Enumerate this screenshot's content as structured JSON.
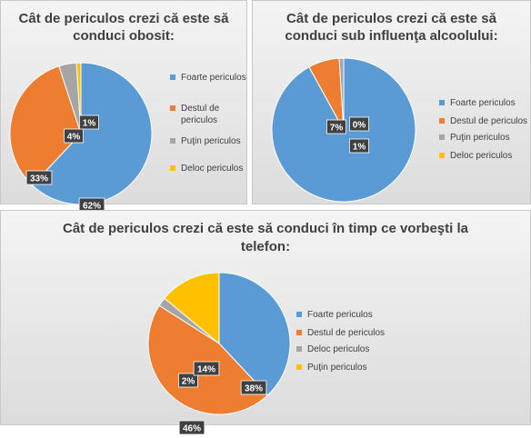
{
  "colors": {
    "blue": "#5B9BD5",
    "orange": "#ED7D31",
    "gray": "#A5A5A5",
    "yellow": "#FFC000"
  },
  "chart_data": [
    {
      "type": "pie",
      "title": "Cât de periculos crezi că este să conduci obosit:",
      "categories": [
        "Foarte periculos",
        "Destul de periculos",
        "Puţin periculos",
        "Deloc periculos"
      ],
      "values": [
        62,
        33,
        4,
        1
      ],
      "labels": [
        "62%",
        "33%",
        "4%",
        "1%"
      ],
      "colors": [
        "#5B9BD5",
        "#ED7D31",
        "#A5A5A5",
        "#FFC000"
      ],
      "legend_position": "right"
    },
    {
      "type": "pie",
      "title": "Cât de periculos crezi că este să conduci sub influenţa alcoolului:",
      "categories": [
        "Foarte periculos",
        "Destul de periculos",
        "Puţin periculos",
        "Deloc periculos"
      ],
      "values": [
        92,
        7,
        1,
        0
      ],
      "labels": [
        "92%",
        "7%",
        "1%",
        "0%"
      ],
      "colors": [
        "#5B9BD5",
        "#ED7D31",
        "#A5A5A5",
        "#FFC000"
      ],
      "legend_position": "right"
    },
    {
      "type": "pie",
      "title": "Cât de periculos crezi că este să conduci în timp ce vorbeşti la telefon:",
      "categories": [
        "Foarte periculos",
        "Destul de periculos",
        "Deloc periculos",
        "Puţin periculos"
      ],
      "values": [
        38,
        46,
        2,
        14
      ],
      "labels": [
        "38%",
        "46%",
        "2%",
        "14%"
      ],
      "colors": [
        "#5B9BD5",
        "#ED7D31",
        "#A5A5A5",
        "#FFC000"
      ],
      "legend_position": "right"
    }
  ]
}
